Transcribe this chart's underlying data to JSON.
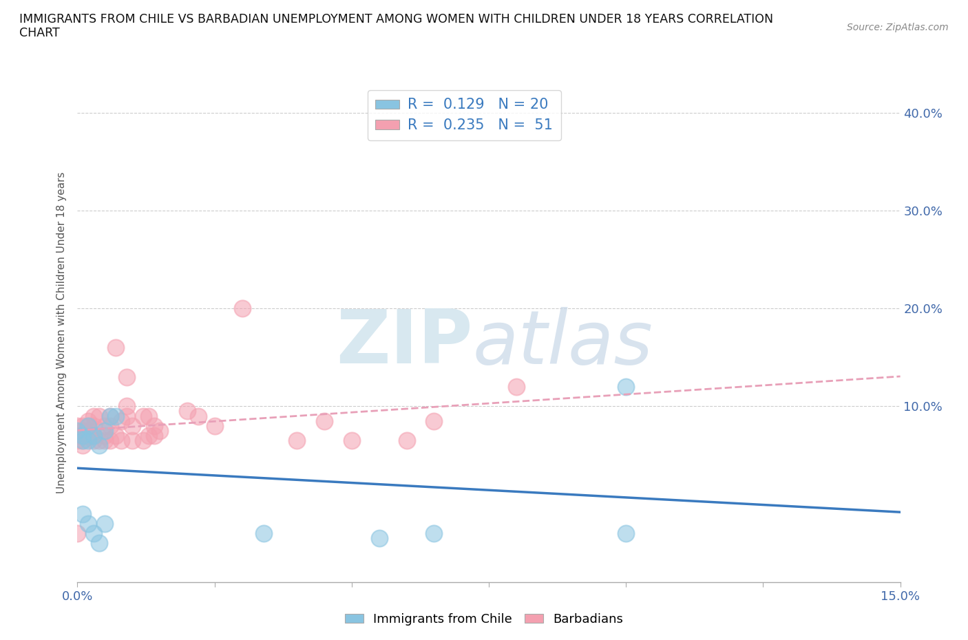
{
  "title": "IMMIGRANTS FROM CHILE VS BARBADIAN UNEMPLOYMENT AMONG WOMEN WITH CHILDREN UNDER 18 YEARS CORRELATION\nCHART",
  "source": "Source: ZipAtlas.com",
  "ylabel": "Unemployment Among Women with Children Under 18 years",
  "color_blue": "#89c4e1",
  "color_pink": "#f4a0b0",
  "trendline_blue_color": "#3a7abf",
  "trendline_pink_color": "#e06080",
  "trendline_pink_dash_color": "#e8a0b8",
  "xlim": [
    0.0,
    0.15
  ],
  "ylim": [
    -0.08,
    0.43
  ],
  "ytick_vals": [
    0.1,
    0.2,
    0.3,
    0.4
  ],
  "ytick_labels": [
    "10.0%",
    "20.0%",
    "30.0%",
    "40.0%"
  ],
  "xtick_vals": [
    0.0,
    0.025,
    0.05,
    0.075,
    0.1,
    0.125,
    0.15
  ],
  "xtick_labels": [
    "0.0%",
    "",
    "",
    "",
    "",
    "",
    "15.0%"
  ],
  "chile_x": [
    0.0,
    0.001,
    0.001,
    0.001,
    0.002,
    0.002,
    0.002,
    0.003,
    0.003,
    0.004,
    0.004,
    0.005,
    0.005,
    0.006,
    0.007,
    0.034,
    0.055,
    0.065,
    0.1,
    0.1
  ],
  "chile_y": [
    0.075,
    0.07,
    0.065,
    -0.01,
    0.08,
    0.065,
    -0.02,
    0.07,
    -0.03,
    0.06,
    -0.04,
    0.075,
    -0.02,
    0.09,
    0.09,
    -0.03,
    -0.035,
    -0.03,
    0.12,
    -0.03
  ],
  "barbadian_x": [
    0.0,
    0.0,
    0.0,
    0.0,
    0.001,
    0.001,
    0.001,
    0.001,
    0.001,
    0.002,
    0.002,
    0.002,
    0.002,
    0.003,
    0.003,
    0.003,
    0.003,
    0.004,
    0.004,
    0.005,
    0.005,
    0.005,
    0.006,
    0.006,
    0.006,
    0.007,
    0.007,
    0.008,
    0.008,
    0.009,
    0.009,
    0.009,
    0.01,
    0.01,
    0.012,
    0.012,
    0.013,
    0.013,
    0.014,
    0.014,
    0.015,
    0.02,
    0.022,
    0.025,
    0.03,
    0.04,
    0.045,
    0.05,
    0.06,
    0.065,
    0.08
  ],
  "barbadian_y": [
    0.07,
    0.065,
    0.08,
    -0.03,
    0.06,
    0.065,
    0.07,
    0.075,
    0.08,
    0.07,
    0.075,
    0.08,
    0.085,
    0.065,
    0.07,
    0.08,
    0.09,
    0.065,
    0.09,
    0.065,
    0.07,
    0.08,
    0.065,
    0.08,
    0.09,
    0.07,
    0.16,
    0.065,
    0.085,
    0.09,
    0.1,
    0.13,
    0.065,
    0.08,
    0.065,
    0.09,
    0.07,
    0.09,
    0.07,
    0.08,
    0.075,
    0.095,
    0.09,
    0.08,
    0.2,
    0.065,
    0.085,
    0.065,
    0.065,
    0.085,
    0.12
  ],
  "legend_label_blue": "R =  0.129   N = 20",
  "legend_label_pink": "R =  0.235   N =  51",
  "legend_text_color": "#3a7abf",
  "bottom_legend_blue": "Immigrants from Chile",
  "bottom_legend_pink": "Barbadians"
}
